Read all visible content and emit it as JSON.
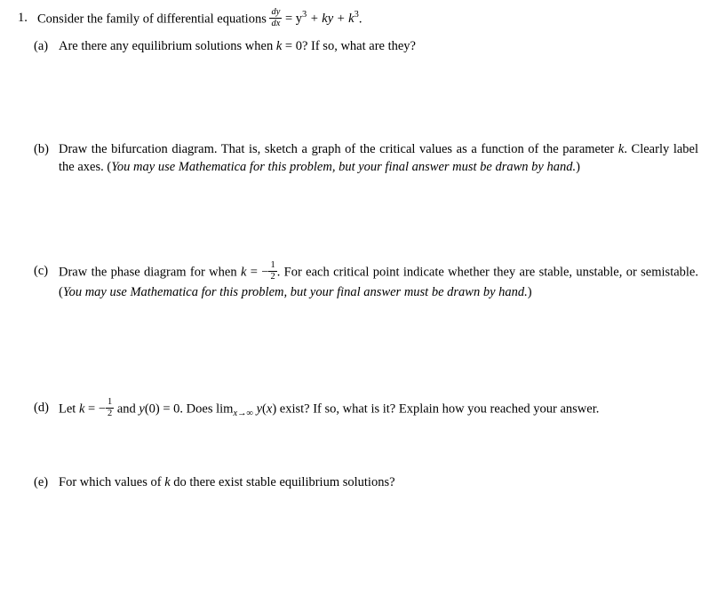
{
  "problem": {
    "number": "1.",
    "stem_before": "Consider the family of differential equations ",
    "eq_lhs_num": "dy",
    "eq_lhs_den": "dx",
    "eq_rhs": " = y",
    "eq_rhs2": " + ky + k",
    "eq_period": "."
  },
  "parts": {
    "a": {
      "label": "(a)",
      "t1": "Are there any equilibrium solutions when ",
      "t2": "k",
      "t3": " = 0? If so, what are they?"
    },
    "b": {
      "label": "(b)",
      "t1": "Draw the bifurcation diagram. That is, sketch a graph of the critical values as a function of the parameter ",
      "t2": "k",
      "t3": ". Clearly label the axes. (",
      "t4": "You may use Mathematica for this problem, but your final answer must be drawn by hand.",
      "t5": ")"
    },
    "c": {
      "label": "(c)",
      "t1": "Draw the phase diagram for when ",
      "t2": "k",
      "t3": " = −",
      "frac_num": "1",
      "frac_den": "2",
      "t4": ". For each critical point indicate whether they are stable, unstable, or semistable. (",
      "t5": "You may use Mathematica for this problem, but your final answer must be drawn by hand.",
      "t6": ")"
    },
    "d": {
      "label": "(d)",
      "t1": "Let ",
      "t2": "k",
      "t3": " = −",
      "frac_num": "1",
      "frac_den": "2",
      "t4": " and ",
      "t5": "y",
      "t6": "(0) = 0. Does lim",
      "t7": "x→∞",
      "t8": " y",
      "t9": "(",
      "t10": "x",
      "t11": ") exist? If so, what is it? Explain how you reached your answer."
    },
    "e": {
      "label": "(e)",
      "t1": "For which values of ",
      "t2": "k",
      "t3": " do there exist stable equilibrium solutions?"
    }
  }
}
